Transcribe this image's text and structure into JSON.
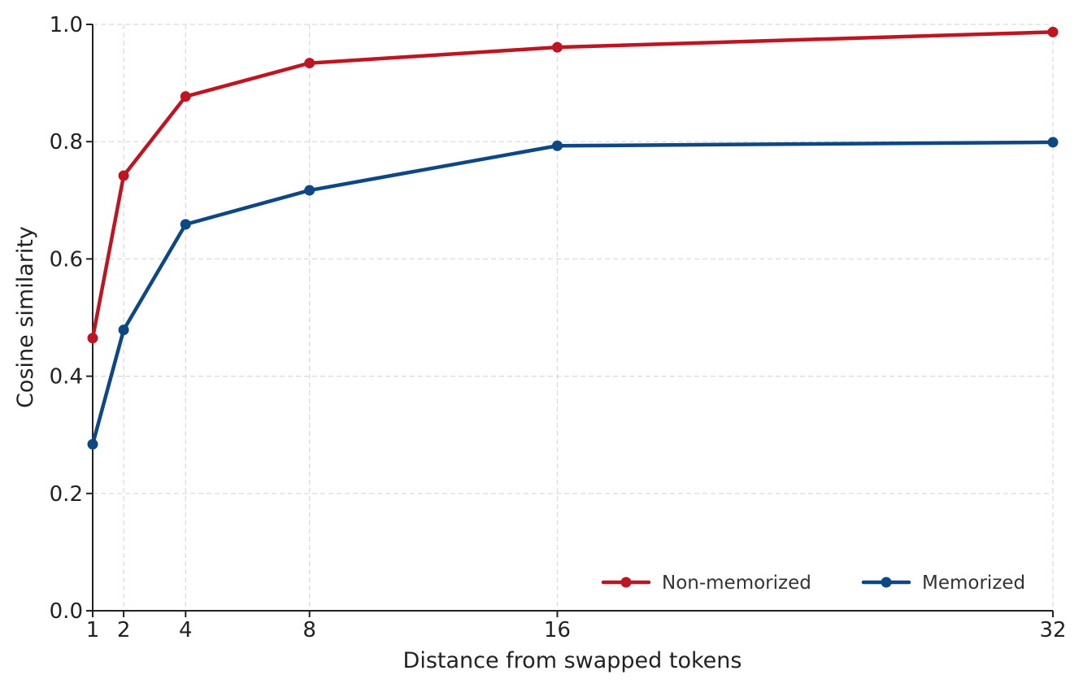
{
  "chart_data": {
    "type": "line",
    "xlabel": "Distance from swapped tokens",
    "ylabel": "Cosine similarity",
    "x": [
      1,
      2,
      4,
      8,
      16,
      32
    ],
    "xticks": [
      "1",
      "2",
      "4",
      "8",
      "16",
      "32"
    ],
    "xlim": [
      1,
      32
    ],
    "ylim": [
      0.0,
      1.0
    ],
    "yticks": [
      "0.0",
      "0.2",
      "0.4",
      "0.6",
      "0.8",
      "1.0"
    ],
    "grid": true,
    "legend_position": "bottom-right",
    "series": [
      {
        "name": "Non-memorized",
        "color": "#bd1622",
        "values": [
          0.465,
          0.742,
          0.877,
          0.934,
          0.961,
          0.987
        ]
      },
      {
        "name": "Memorized",
        "color": "#0d4784",
        "values": [
          0.284,
          0.479,
          0.659,
          0.717,
          0.793,
          0.799
        ]
      }
    ]
  }
}
